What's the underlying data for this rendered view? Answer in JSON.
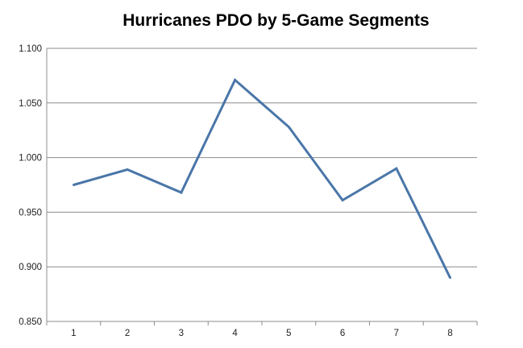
{
  "chart_data": {
    "type": "line",
    "title": "Hurricanes PDO by 5-Game Segments",
    "xlabel": "",
    "ylabel": "",
    "categories": [
      "1",
      "2",
      "3",
      "4",
      "5",
      "6",
      "7",
      "8"
    ],
    "series": [
      {
        "values": [
          0.975,
          0.989,
          0.968,
          1.071,
          1.028,
          0.961,
          0.99,
          0.89
        ]
      }
    ],
    "ylim": [
      0.85,
      1.1
    ],
    "y_ticks": [
      "0.850",
      "0.900",
      "0.950",
      "1.000",
      "1.050",
      "1.100"
    ],
    "grid": "horizontal",
    "legend": "none",
    "colors": {
      "line": "#4a76a8",
      "grid": "#8c8c8c",
      "axis": "#8c8c8c"
    }
  }
}
